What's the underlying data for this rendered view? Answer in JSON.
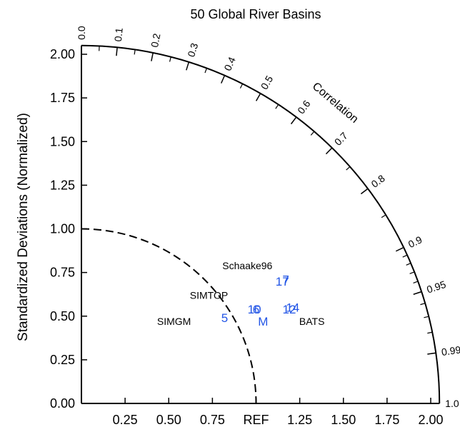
{
  "chart_data": {
    "type": "scatter",
    "subtype": "taylor-diagram",
    "title": "50 Global River Basins",
    "ylabel": "Standardized Deviations (Normalized)",
    "xlabel": "",
    "std_range": [
      0,
      2.05
    ],
    "y_ticks": [
      "0.00",
      "0.25",
      "0.50",
      "0.75",
      "1.00",
      "1.25",
      "1.50",
      "1.75",
      "2.00"
    ],
    "x_ticks": [
      {
        "value": 0.25,
        "label": "0.25"
      },
      {
        "value": 0.5,
        "label": "0.50"
      },
      {
        "value": 0.75,
        "label": "0.75"
      },
      {
        "value": 1.0,
        "label": "REF"
      },
      {
        "value": 1.25,
        "label": "1.25"
      },
      {
        "value": 1.5,
        "label": "1.50"
      },
      {
        "value": 1.75,
        "label": "1.75"
      },
      {
        "value": 2.0,
        "label": "2.00"
      }
    ],
    "correlation_title": "Correlation",
    "correlation_ticks": [
      {
        "value": 0.0,
        "label": "0.0"
      },
      {
        "value": 0.1,
        "label": "0.1"
      },
      {
        "value": 0.2,
        "label": "0.2"
      },
      {
        "value": 0.3,
        "label": "0.3"
      },
      {
        "value": 0.4,
        "label": "0.4"
      },
      {
        "value": 0.5,
        "label": "0.5"
      },
      {
        "value": 0.6,
        "label": "0.6"
      },
      {
        "value": 0.7,
        "label": "0.7"
      },
      {
        "value": 0.8,
        "label": "0.8"
      },
      {
        "value": 0.9,
        "label": "0.9"
      },
      {
        "value": 0.95,
        "label": "0.95"
      },
      {
        "value": 0.99,
        "label": "0.99"
      },
      {
        "value": 1.0,
        "label": "1.0"
      }
    ],
    "reference_std": 1.0,
    "point_color": "#2255e6",
    "points": [
      {
        "label": "5",
        "x": 0.82,
        "y": 0.49
      },
      {
        "label": "10",
        "x": 0.99,
        "y": 0.54
      },
      {
        "label": "6",
        "x": 1.0,
        "y": 0.54
      },
      {
        "label": "M",
        "x": 1.04,
        "y": 0.47
      },
      {
        "label": "17",
        "x": 1.15,
        "y": 0.7
      },
      {
        "label": "7",
        "x": 1.17,
        "y": 0.71
      },
      {
        "label": "12",
        "x": 1.19,
        "y": 0.54
      },
      {
        "label": "14",
        "x": 1.21,
        "y": 0.55
      }
    ],
    "annotations": [
      {
        "text": "Schaake96",
        "x": 0.95,
        "y": 0.79
      },
      {
        "text": "SIMTOP",
        "x": 0.73,
        "y": 0.62
      },
      {
        "text": "SIMGM",
        "x": 0.53,
        "y": 0.47
      },
      {
        "text": "BATS",
        "x": 1.32,
        "y": 0.47
      }
    ]
  }
}
